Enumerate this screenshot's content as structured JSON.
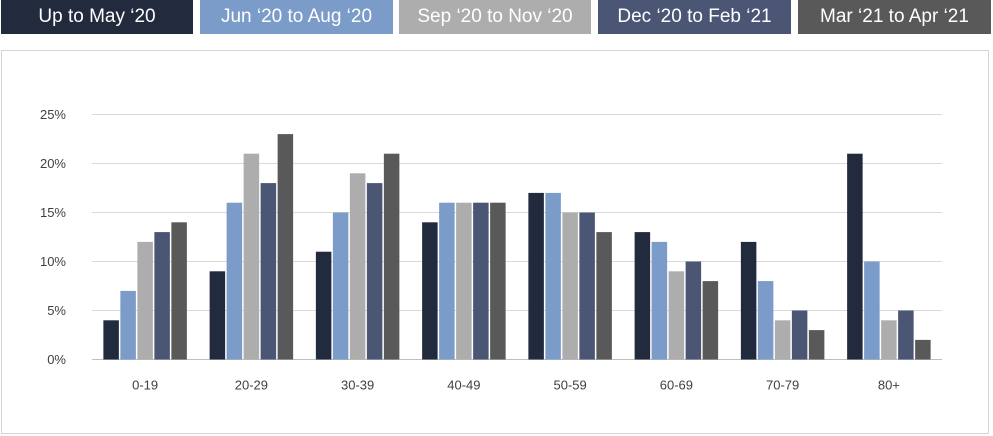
{
  "chart_data": {
    "type": "bar",
    "categories": [
      "0-19",
      "20-29",
      "30-39",
      "40-49",
      "50-59",
      "60-69",
      "70-79",
      "80+"
    ],
    "series": [
      {
        "name": "Up to May ‘20",
        "color": "#222b3d",
        "values": [
          4,
          9,
          11,
          14,
          17,
          13,
          12,
          21
        ]
      },
      {
        "name": "Jun ‘20 to Aug ‘20",
        "color": "#7b9bc8",
        "values": [
          7,
          16,
          15,
          16,
          17,
          12,
          8,
          10
        ]
      },
      {
        "name": "Sep ‘20 to Nov ‘20",
        "color": "#adadad",
        "values": [
          12,
          21,
          19,
          16,
          15,
          9,
          4,
          4
        ]
      },
      {
        "name": "Dec ‘20 to Feb ‘21",
        "color": "#4b5675",
        "values": [
          13,
          18,
          18,
          16,
          15,
          10,
          5,
          5
        ]
      },
      {
        "name": "Mar ‘21 to Apr ‘21",
        "color": "#595959",
        "values": [
          14,
          23,
          21,
          16,
          13,
          8,
          3,
          2
        ]
      }
    ],
    "y_ticks": [
      "0%",
      "5%",
      "10%",
      "15%",
      "20%",
      "25%"
    ],
    "ylim": [
      0,
      25
    ],
    "grid": true,
    "legend_position": "top"
  },
  "legend": {
    "items": [
      {
        "label": "Up to May ‘20",
        "color": "#222b3d"
      },
      {
        "label": "Jun ‘20 to Aug ‘20",
        "color": "#7b9bc8"
      },
      {
        "label": "Sep ‘20 to Nov ‘20",
        "color": "#adadad"
      },
      {
        "label": "Dec ‘20 to Feb ‘21",
        "color": "#4b5675"
      },
      {
        "label": "Mar ‘21 to Apr ‘21",
        "color": "#595959"
      }
    ]
  }
}
